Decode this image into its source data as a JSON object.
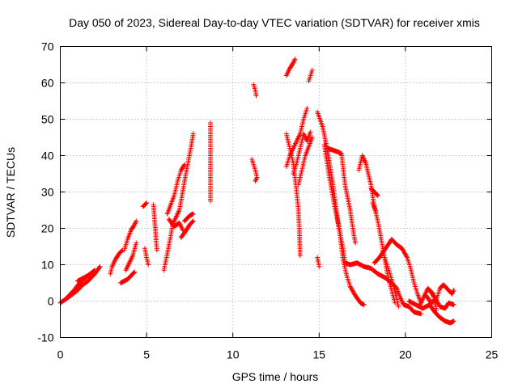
{
  "chart_data": {
    "type": "scatter",
    "title": "Day 050 of 2023, Sidereal Day-to-day VTEC variation (SDTVAR) for receiver xmis",
    "xlabel": "GPS time / hours",
    "ylabel": "SDTVAR / TECUs",
    "xlim": [
      0,
      25
    ],
    "ylim": [
      -10,
      70
    ],
    "xticks": [
      "0",
      "5",
      "10",
      "15",
      "20",
      "25"
    ],
    "yticks": [
      "-10",
      "0",
      "10",
      "20",
      "30",
      "40",
      "50",
      "60",
      "70"
    ],
    "grid": true,
    "marker": "+",
    "color": "#ff0000",
    "segments": [
      [
        [
          0.0,
          -0.5
        ],
        [
          0.3,
          0.5
        ],
        [
          0.6,
          1.5
        ],
        [
          1.0,
          3.0
        ],
        [
          1.3,
          4.5
        ],
        [
          1.6,
          5.5
        ],
        [
          2.0,
          7.5
        ],
        [
          2.3,
          9.5
        ]
      ],
      [
        [
          0.4,
          1.0
        ],
        [
          0.8,
          3.0
        ],
        [
          1.2,
          5.5
        ],
        [
          1.6,
          7.0
        ],
        [
          2.0,
          8.5
        ]
      ],
      [
        [
          1.0,
          5.5
        ],
        [
          1.4,
          6.5
        ],
        [
          1.8,
          7.5
        ]
      ],
      [
        [
          2.9,
          7.5
        ],
        [
          3.0,
          9.5
        ],
        [
          3.2,
          11.5
        ],
        [
          3.4,
          13.0
        ],
        [
          3.6,
          14.0
        ]
      ],
      [
        [
          3.5,
          5.0
        ],
        [
          3.7,
          5.5
        ],
        [
          3.9,
          6.0
        ],
        [
          4.1,
          7.0
        ],
        [
          4.3,
          8.0
        ]
      ],
      [
        [
          3.7,
          14.0
        ],
        [
          3.9,
          17.0
        ],
        [
          4.1,
          19.5
        ],
        [
          4.3,
          21.0
        ],
        [
          4.4,
          22.0
        ]
      ],
      [
        [
          3.8,
          8.5
        ],
        [
          4.0,
          10.5
        ],
        [
          4.2,
          12.5
        ],
        [
          4.4,
          16.0
        ]
      ],
      [
        [
          4.8,
          26.0
        ],
        [
          5.0,
          27.0
        ]
      ],
      [
        [
          4.9,
          14.5
        ],
        [
          5.0,
          12.0
        ],
        [
          5.1,
          10.0
        ]
      ],
      [
        [
          5.4,
          26.5
        ],
        [
          5.6,
          14.0
        ]
      ],
      [
        [
          6.0,
          8.5
        ],
        [
          6.2,
          13.0
        ],
        [
          6.4,
          18.0
        ],
        [
          6.5,
          21.0
        ],
        [
          6.7,
          23.0
        ],
        [
          6.9,
          25.0
        ],
        [
          7.0,
          27.5
        ],
        [
          7.2,
          33.0
        ],
        [
          7.4,
          38.0
        ],
        [
          7.6,
          43.0
        ],
        [
          7.7,
          46.0
        ]
      ],
      [
        [
          6.2,
          24.0
        ],
        [
          6.4,
          26.5
        ],
        [
          6.6,
          29.0
        ],
        [
          6.8,
          33.0
        ],
        [
          7.0,
          36.0
        ],
        [
          7.2,
          37.5
        ]
      ],
      [
        [
          6.3,
          22.5
        ],
        [
          6.6,
          20.5
        ],
        [
          6.9,
          21.5
        ],
        [
          7.1,
          19.5
        ]
      ],
      [
        [
          7.2,
          22.0
        ],
        [
          7.5,
          23.5
        ],
        [
          7.7,
          24.0
        ]
      ],
      [
        [
          7.0,
          17.5
        ],
        [
          7.3,
          19.5
        ],
        [
          7.5,
          21.0
        ],
        [
          7.7,
          22.0
        ]
      ],
      [
        [
          8.7,
          49.0
        ],
        [
          8.7,
          47.0
        ],
        [
          8.7,
          43.0
        ],
        [
          8.7,
          34.0
        ],
        [
          8.7,
          27.5
        ]
      ],
      [
        [
          11.2,
          59.5
        ],
        [
          11.3,
          58.0
        ],
        [
          11.35,
          56.5
        ]
      ],
      [
        [
          11.1,
          39.0
        ],
        [
          11.2,
          37.5
        ],
        [
          11.3,
          36.0
        ],
        [
          11.4,
          34.0
        ],
        [
          11.3,
          33.0
        ]
      ],
      [
        [
          13.1,
          62.0
        ],
        [
          13.3,
          64.0
        ],
        [
          13.5,
          65.5
        ],
        [
          13.6,
          66.5
        ]
      ],
      [
        [
          14.4,
          60.5
        ],
        [
          14.5,
          62.0
        ],
        [
          14.6,
          63.5
        ]
      ],
      [
        [
          13.1,
          46.0
        ],
        [
          13.3,
          42.0
        ],
        [
          13.5,
          38.0
        ],
        [
          13.6,
          34.0
        ],
        [
          13.7,
          30.0
        ],
        [
          13.8,
          25.0
        ],
        [
          13.85,
          20.0
        ],
        [
          13.9,
          12.5
        ]
      ],
      [
        [
          13.1,
          37.0
        ],
        [
          13.3,
          40.0
        ],
        [
          13.6,
          43.0
        ],
        [
          13.9,
          46.0
        ],
        [
          14.1,
          50.0
        ],
        [
          14.3,
          53.0
        ]
      ],
      [
        [
          13.5,
          35.0
        ],
        [
          13.7,
          38.0
        ],
        [
          13.9,
          42.0
        ],
        [
          14.1,
          46.0
        ],
        [
          14.3,
          44.0
        ],
        [
          14.5,
          46.5
        ]
      ],
      [
        [
          13.8,
          32.0
        ],
        [
          14.0,
          36.0
        ],
        [
          14.2,
          40.0
        ],
        [
          14.4,
          42.5
        ],
        [
          14.6,
          45.0
        ]
      ],
      [
        [
          14.9,
          12.0
        ],
        [
          15.0,
          9.5
        ]
      ],
      [
        [
          14.9,
          52.0
        ],
        [
          15.2,
          48.0
        ],
        [
          15.5,
          41.0
        ],
        [
          15.8,
          32.0
        ],
        [
          16.0,
          25.0
        ],
        [
          16.2,
          18.5
        ],
        [
          16.4,
          11.0
        ],
        [
          16.6,
          7.0
        ],
        [
          16.8,
          4.0
        ],
        [
          17.1,
          1.5
        ],
        [
          17.4,
          -0.5
        ],
        [
          17.6,
          -1.0
        ]
      ],
      [
        [
          15.3,
          43.0
        ],
        [
          15.6,
          34.0
        ],
        [
          15.9,
          26.0
        ],
        [
          16.2,
          19.0
        ],
        [
          16.4,
          14.0
        ],
        [
          16.5,
          10.5
        ],
        [
          16.8,
          10.0
        ],
        [
          17.2,
          10.5
        ],
        [
          17.6,
          9.5
        ],
        [
          18.0,
          9.0
        ],
        [
          18.4,
          7.5
        ],
        [
          18.8,
          6.5
        ],
        [
          19.2,
          5.0
        ],
        [
          19.5,
          3.5
        ],
        [
          19.7,
          1.0
        ],
        [
          19.9,
          -1.0
        ],
        [
          20.2,
          -1.5
        ],
        [
          20.5,
          -3.0
        ],
        [
          20.9,
          -3.5
        ]
      ],
      [
        [
          15.5,
          42.0
        ],
        [
          15.8,
          41.5
        ],
        [
          16.1,
          41.0
        ],
        [
          16.3,
          40.5
        ],
        [
          16.5,
          32.0
        ],
        [
          16.8,
          25.0
        ],
        [
          17.0,
          18.5
        ],
        [
          17.1,
          16.0
        ]
      ],
      [
        [
          17.3,
          36.0
        ],
        [
          17.5,
          40.0
        ],
        [
          17.7,
          38.0
        ],
        [
          18.0,
          32.0
        ],
        [
          18.2,
          26.0
        ],
        [
          18.4,
          22.0
        ],
        [
          18.6,
          17.0
        ],
        [
          18.8,
          11.5
        ],
        [
          19.0,
          6.5
        ],
        [
          19.2,
          3.0
        ],
        [
          19.4,
          -0.5
        ]
      ],
      [
        [
          18.0,
          31.0
        ],
        [
          18.2,
          30.0
        ],
        [
          18.4,
          29.0
        ]
      ],
      [
        [
          18.1,
          27.0
        ],
        [
          18.3,
          24.5
        ]
      ],
      [
        [
          18.2,
          10.5
        ],
        [
          18.5,
          12.0
        ],
        [
          18.7,
          13.5
        ],
        [
          19.0,
          15.5
        ],
        [
          19.2,
          17.0
        ],
        [
          19.5,
          15.5
        ],
        [
          19.8,
          14.5
        ],
        [
          20.1,
          12.0
        ],
        [
          20.3,
          9.0
        ],
        [
          20.5,
          5.0
        ],
        [
          20.7,
          2.0
        ],
        [
          20.9,
          -0.5
        ]
      ],
      [
        [
          18.8,
          12.0
        ],
        [
          19.0,
          9.0
        ],
        [
          19.2,
          6.0
        ],
        [
          19.4,
          2.5
        ],
        [
          19.6,
          -1.5
        ]
      ],
      [
        [
          20.2,
          0.0
        ],
        [
          20.6,
          -1.0
        ],
        [
          21.0,
          -2.0
        ],
        [
          21.4,
          -1.0
        ],
        [
          21.7,
          -3.0
        ],
        [
          22.0,
          -4.5
        ],
        [
          22.3,
          -5.5
        ],
        [
          22.6,
          -6.0
        ],
        [
          22.8,
          -5.5
        ]
      ],
      [
        [
          21.2,
          1.5
        ],
        [
          21.5,
          -0.5
        ],
        [
          21.8,
          0.5
        ],
        [
          22.0,
          3.5
        ],
        [
          22.2,
          4.5
        ],
        [
          22.5,
          3.0
        ],
        [
          22.7,
          2.0
        ],
        [
          22.8,
          3.0
        ]
      ],
      [
        [
          21.4,
          3.0
        ],
        [
          21.7,
          1.0
        ],
        [
          22.0,
          -1.5
        ],
        [
          22.3,
          -2.0
        ],
        [
          22.5,
          -0.5
        ],
        [
          22.8,
          -1.0
        ]
      ],
      [
        [
          20.8,
          -1.5
        ],
        [
          21.1,
          1.5
        ],
        [
          21.3,
          3.5
        ],
        [
          21.6,
          2.0
        ],
        [
          21.8,
          -2.5
        ]
      ]
    ]
  }
}
